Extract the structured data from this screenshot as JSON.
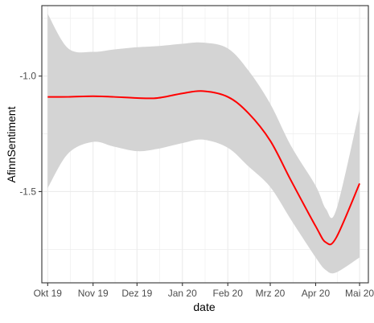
{
  "chart_data": {
    "type": "line",
    "title": "",
    "xlabel": "date",
    "ylabel": "AfinnSentiment",
    "x_ticks": [
      "Okt 19",
      "Nov 19",
      "Dez 19",
      "Jan 20",
      "Feb 20",
      "Mrz 20",
      "Apr 20",
      "Mai 20"
    ],
    "y_ticks": [
      "-1.0",
      "-1.5"
    ],
    "y_tick_values": [
      -1.0,
      -1.5
    ],
    "xlim": [
      "2019-09-27",
      "2020-05-07"
    ],
    "ylim": [
      -1.895,
      -0.695
    ],
    "grid": true,
    "x": [
      "2019-10-01",
      "2019-10-15",
      "2019-11-01",
      "2019-11-15",
      "2019-12-01",
      "2019-12-15",
      "2020-01-01",
      "2020-01-15",
      "2020-02-01",
      "2020-02-15",
      "2020-03-01",
      "2020-03-15",
      "2020-04-01",
      "2020-04-08",
      "2020-04-15",
      "2020-05-01"
    ],
    "series": [
      {
        "values": [
          -1.09,
          -1.09,
          -1.087,
          -1.09,
          -1.095,
          -1.095,
          -1.075,
          -1.065,
          -1.09,
          -1.16,
          -1.28,
          -1.45,
          -1.65,
          -1.72,
          -1.7,
          -1.465
        ]
      }
    ],
    "band_upper": [
      -0.73,
      -0.88,
      -0.895,
      -0.885,
      -0.875,
      -0.87,
      -0.86,
      -0.855,
      -0.88,
      -0.975,
      -1.12,
      -1.3,
      -1.475,
      -1.575,
      -1.58,
      -1.145
    ],
    "band_lower": [
      -1.485,
      -1.335,
      -1.285,
      -1.305,
      -1.325,
      -1.315,
      -1.29,
      -1.275,
      -1.31,
      -1.39,
      -1.48,
      -1.62,
      -1.785,
      -1.84,
      -1.85,
      -1.785
    ],
    "colors": {
      "line": "#ff0000",
      "band": "#d4d4d4",
      "grid": "#ebebeb",
      "axis": "#333333"
    }
  }
}
